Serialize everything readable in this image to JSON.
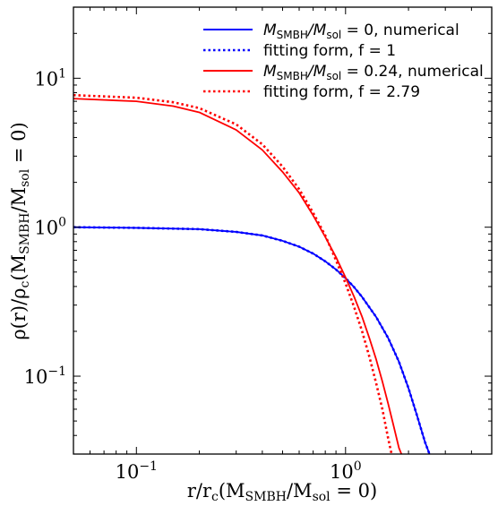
{
  "chart_data": {
    "type": "line",
    "xscale": "log",
    "yscale": "log",
    "xlim": [
      0.05,
      5.0
    ],
    "ylim": [
      0.03,
      30
    ],
    "x_ticks": [
      {
        "value": 0.1,
        "mantissa": "10",
        "exponent": "−1"
      },
      {
        "value": 1,
        "mantissa": "10",
        "exponent": "0"
      }
    ],
    "y_ticks": [
      {
        "value": 0.1,
        "mantissa": "10",
        "exponent": "−1"
      },
      {
        "value": 1,
        "mantissa": "10",
        "exponent": "0"
      },
      {
        "value": 10,
        "mantissa": "10",
        "exponent": "1"
      }
    ],
    "xlabel": {
      "pre": "r/r",
      "sub1": "c",
      "mid": "(M",
      "sub2": "SMBH",
      "mid2": "/M",
      "sub3": "sol",
      "post": " = 0)"
    },
    "ylabel": {
      "pre": "ρ(r)/ρ",
      "sub1": "c",
      "mid": "(M",
      "sub2": "SMBH",
      "mid2": "/M",
      "sub3": "sol",
      "post": " = 0)"
    },
    "legend_placement": "top-right",
    "legend": [
      {
        "math": "M",
        "sub1": "SMBH",
        "mid": "/M",
        "sub2": "sol",
        "rest": " = 0, numerical",
        "color": "#0000ff",
        "dash": "solid"
      },
      {
        "math": "",
        "sub1": "",
        "mid": "",
        "sub2": "",
        "rest": "fitting form, f = 1",
        "color": "#0000ff",
        "dash": "dotted"
      },
      {
        "math": "M",
        "sub1": "SMBH",
        "mid": "/M",
        "sub2": "sol",
        "rest": " = 0.24, numerical",
        "color": "#ff0000",
        "dash": "solid"
      },
      {
        "math": "",
        "sub1": "",
        "mid": "",
        "sub2": "",
        "rest": "fitting form, f = 2.79",
        "color": "#ff0000",
        "dash": "dotted"
      }
    ],
    "series": [
      {
        "color": "#0000ff",
        "dash": "solid",
        "x": [
          0.05,
          0.1,
          0.2,
          0.3,
          0.4,
          0.5,
          0.6,
          0.7,
          0.8,
          0.9,
          1.0,
          1.1,
          1.2,
          1.4,
          1.6,
          1.8,
          2.0,
          2.2,
          2.4,
          2.52
        ],
        "y": [
          1.0,
          0.99,
          0.97,
          0.93,
          0.88,
          0.81,
          0.74,
          0.665,
          0.59,
          0.52,
          0.455,
          0.395,
          0.34,
          0.25,
          0.18,
          0.125,
          0.083,
          0.054,
          0.036,
          0.03
        ]
      },
      {
        "color": "#0000ff",
        "dash": "dotted",
        "x": [
          0.05,
          0.1,
          0.2,
          0.3,
          0.4,
          0.5,
          0.6,
          0.7,
          0.8,
          0.9,
          1.0,
          1.1,
          1.2,
          1.4,
          1.6,
          1.8,
          2.0,
          2.2,
          2.4,
          2.52
        ],
        "y": [
          1.0,
          0.99,
          0.97,
          0.93,
          0.88,
          0.81,
          0.74,
          0.665,
          0.59,
          0.52,
          0.455,
          0.395,
          0.34,
          0.25,
          0.18,
          0.125,
          0.083,
          0.054,
          0.036,
          0.03
        ]
      },
      {
        "color": "#ff0000",
        "dash": "solid",
        "x": [
          0.05,
          0.1,
          0.15,
          0.2,
          0.3,
          0.4,
          0.5,
          0.6,
          0.7,
          0.8,
          0.9,
          1.0,
          1.1,
          1.2,
          1.3,
          1.4,
          1.5,
          1.6,
          1.7,
          1.8,
          1.85
        ],
        "y": [
          7.3,
          7.0,
          6.5,
          5.9,
          4.5,
          3.3,
          2.35,
          1.7,
          1.2,
          0.86,
          0.63,
          0.46,
          0.34,
          0.25,
          0.18,
          0.13,
          0.092,
          0.065,
          0.046,
          0.033,
          0.03
        ]
      },
      {
        "color": "#ff0000",
        "dash": "dotted",
        "x": [
          0.05,
          0.1,
          0.15,
          0.2,
          0.3,
          0.4,
          0.5,
          0.6,
          0.7,
          0.8,
          0.9,
          1.0,
          1.1,
          1.2,
          1.3,
          1.4,
          1.5,
          1.6,
          1.66
        ],
        "y": [
          7.7,
          7.4,
          6.9,
          6.3,
          4.9,
          3.6,
          2.55,
          1.8,
          1.25,
          0.88,
          0.6,
          0.42,
          0.29,
          0.2,
          0.135,
          0.09,
          0.06,
          0.038,
          0.03
        ]
      }
    ]
  }
}
